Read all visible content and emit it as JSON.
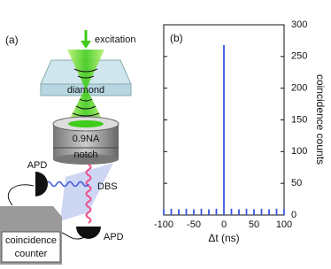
{
  "diagram": {
    "panel_label": "(a)",
    "excitation": "excitation",
    "diamond": "diamond",
    "objective": "0.9NA",
    "filter": "notch",
    "apd_top": "APD",
    "splitter": "DBS",
    "apd_bottom": "APD",
    "counter": [
      "coincidence",
      "counter"
    ]
  },
  "chart_data": {
    "type": "bar",
    "panel_label": "(b)",
    "x": [
      -100,
      -87.5,
      -75,
      -62.5,
      -50,
      -37.5,
      -25,
      -12.5,
      0,
      12.5,
      25,
      37.5,
      50,
      62.5,
      75,
      87.5,
      100
    ],
    "values": [
      9,
      10,
      9,
      10,
      9,
      10,
      9,
      10,
      268,
      10,
      9,
      10,
      9,
      10,
      9,
      10,
      9
    ],
    "color": "#3b55e0",
    "xlim": [
      -100,
      100
    ],
    "ylim": [
      0,
      300
    ],
    "xticks": [
      -100,
      -50,
      0,
      50,
      100
    ],
    "yticks": [
      0,
      50,
      100,
      150,
      200,
      250,
      300
    ],
    "x_label": "Δt (ns)",
    "y_label": "coincidence counts"
  }
}
